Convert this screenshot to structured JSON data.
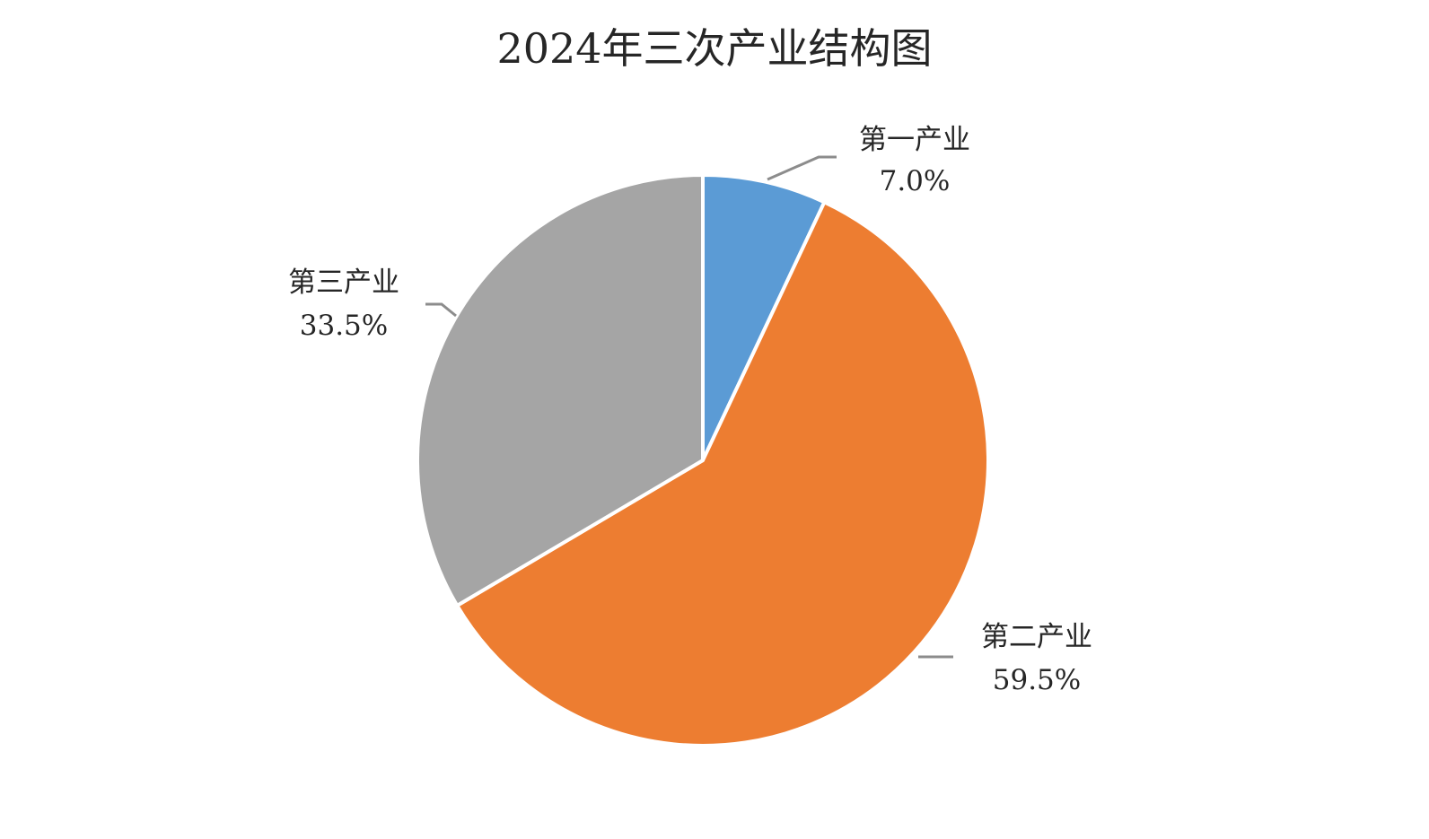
{
  "chart_data": {
    "type": "pie",
    "title": "2024年三次产业结构图",
    "categories": [
      "第一产业",
      "第二产业",
      "第三产业"
    ],
    "values": [
      7.0,
      59.5,
      33.5
    ],
    "value_labels": [
      "7.0%",
      "59.5%",
      "33.5%"
    ],
    "colors": [
      "#5b9bd5",
      "#ed7d31",
      "#a5a5a5"
    ],
    "start_angle": "12 o'clock",
    "direction": "clockwise",
    "legend": "none",
    "data_labels": "outside with leader lines"
  }
}
